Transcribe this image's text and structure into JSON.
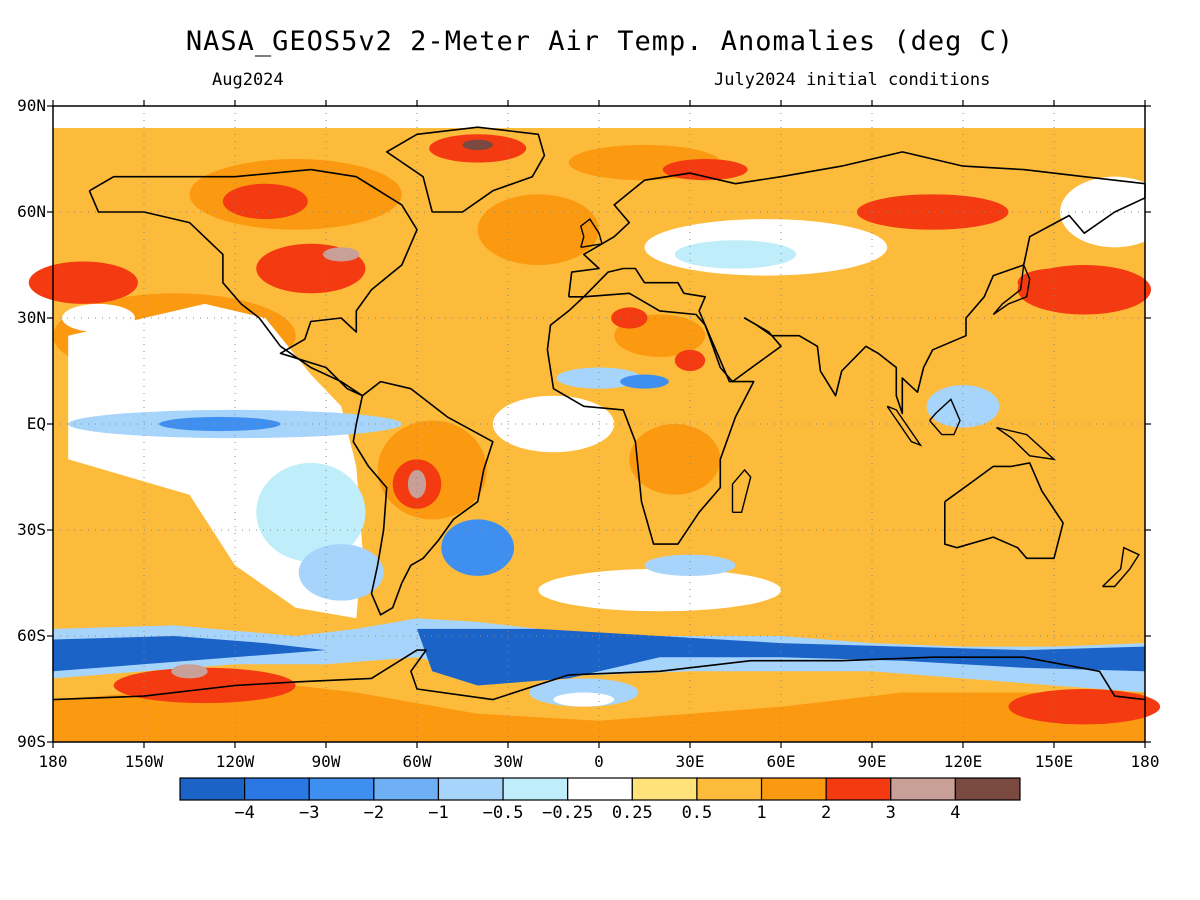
{
  "title": "NASA_GEOS5v2 2-Meter Air Temp. Anomalies (deg C)",
  "subtitle_left": "Aug2024",
  "subtitle_right": "July2024 initial conditions",
  "lat_ticks": [
    "90N",
    "60N",
    "30N",
    "EQ",
    "30S",
    "60S",
    "90S"
  ],
  "lon_ticks": [
    "180",
    "150W",
    "120W",
    "90W",
    "60W",
    "30W",
    "0",
    "30E",
    "60E",
    "90E",
    "120E",
    "150E",
    "180"
  ],
  "colorbar": {
    "labels": [
      "-4",
      "-3",
      "-2",
      "-1",
      "-0.5",
      "-0.25",
      "0.25",
      "0.5",
      "1",
      "2",
      "3",
      "4"
    ],
    "colors": [
      "#1c63c8",
      "#2b78e4",
      "#3f8ff0",
      "#6fb0f5",
      "#a7d4fa",
      "#bfeefa",
      "#ffffff",
      "#ffe27a",
      "#fdbb3c",
      "#fb9a10",
      "#f43a10",
      "#c8a098",
      "#7a4a40"
    ]
  },
  "palette": {
    "warm": "#fdbb3c",
    "warmer": "#fb9a10",
    "hot": "#f43a10",
    "hotter": "#c8a098",
    "hottest": "#7a4a40",
    "neutral": "#ffffff",
    "cool": "#bfeefa",
    "cooler": "#a7d4fa",
    "cold": "#3f8ff0",
    "colder": "#1c63c8"
  }
}
